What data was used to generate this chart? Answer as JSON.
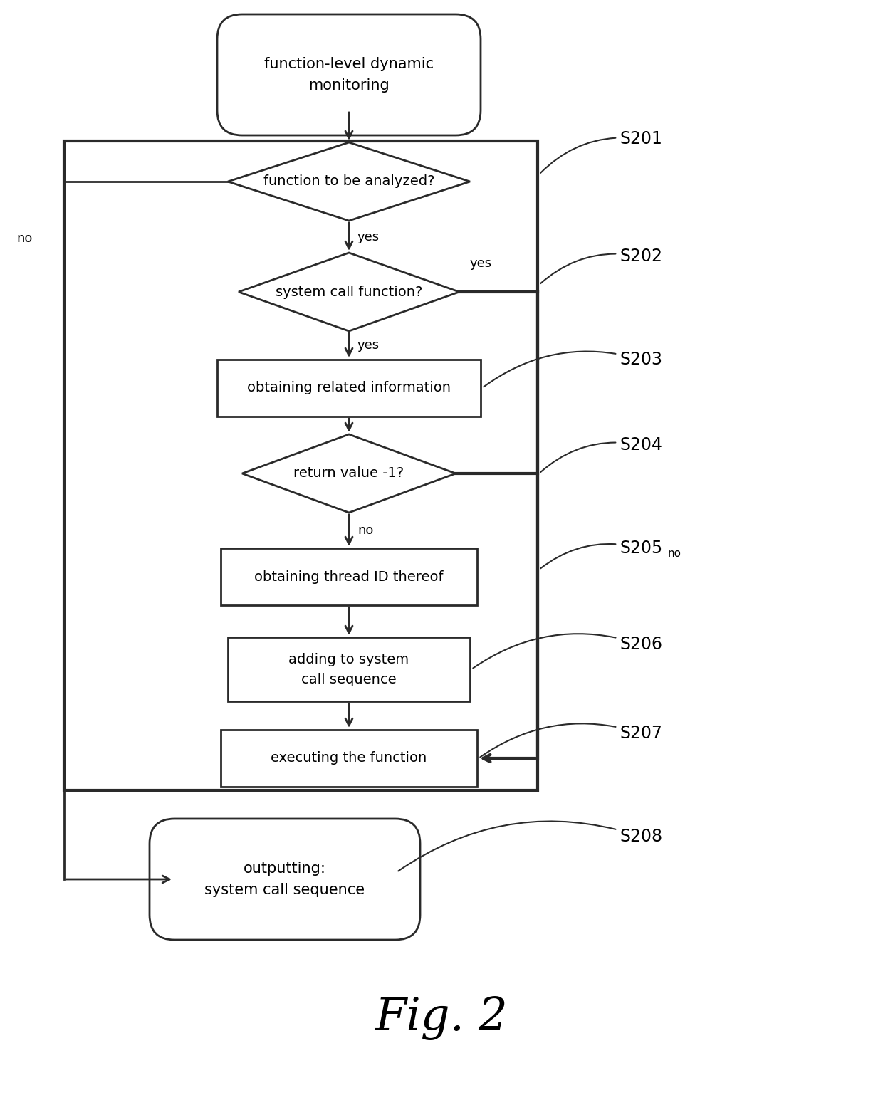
{
  "bg_color": "#ffffff",
  "line_color": "#2a2a2a",
  "text_color": "#000000",
  "fig_width": 12.4,
  "fig_height": 15.52,
  "title": "Fig. 2",
  "start_label": "function-level dynamic\nmonitoring",
  "s201_label": "function to be analyzed?",
  "s202_label": "system call function?",
  "s203_label": "obtaining related information",
  "s204_label": "return value -1?",
  "s205_label": "obtaining thread ID thereof",
  "s206_label": "adding to system\ncall sequence",
  "s207_label": "executing the function",
  "s208_label": "outputting:\nsystem call sequence"
}
